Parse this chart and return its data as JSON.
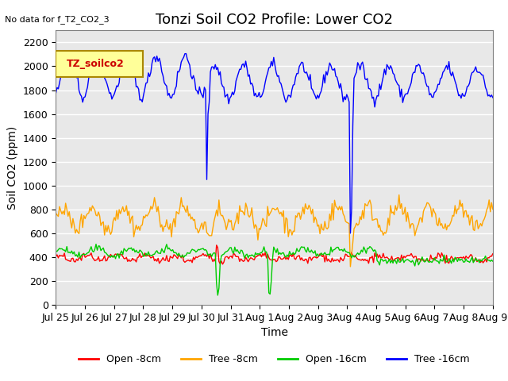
{
  "title": "Tonzi Soil CO2 Profile: Lower CO2",
  "no_data_text": "No data for f_T2_CO2_3",
  "ylabel": "Soil CO2 (ppm)",
  "xlabel": "Time",
  "legend_label": "TZ_soilco2",
  "ylim": [
    0,
    2300
  ],
  "yticks": [
    0,
    200,
    400,
    600,
    800,
    1000,
    1200,
    1400,
    1600,
    1800,
    2000,
    2200
  ],
  "x_tick_labels": [
    "Jul 25",
    "Jul 26",
    "Jul 27",
    "Jul 28",
    "Jul 29",
    "Jul 30",
    "Jul 31",
    "Aug 1",
    "Aug 2",
    "Aug 3",
    "Aug 4",
    "Aug 5",
    "Aug 6",
    "Aug 7",
    "Aug 8",
    "Aug 9"
  ],
  "colors": {
    "open_8cm": "#FF0000",
    "tree_8cm": "#FFA500",
    "open_16cm": "#00CC00",
    "tree_16cm": "#0000FF"
  },
  "legend_entries": [
    "Open -8cm",
    "Tree -8cm",
    "Open -16cm",
    "Tree -16cm"
  ],
  "bg_color": "#E8E8E8",
  "title_fontsize": 13,
  "label_fontsize": 10,
  "tick_fontsize": 9
}
